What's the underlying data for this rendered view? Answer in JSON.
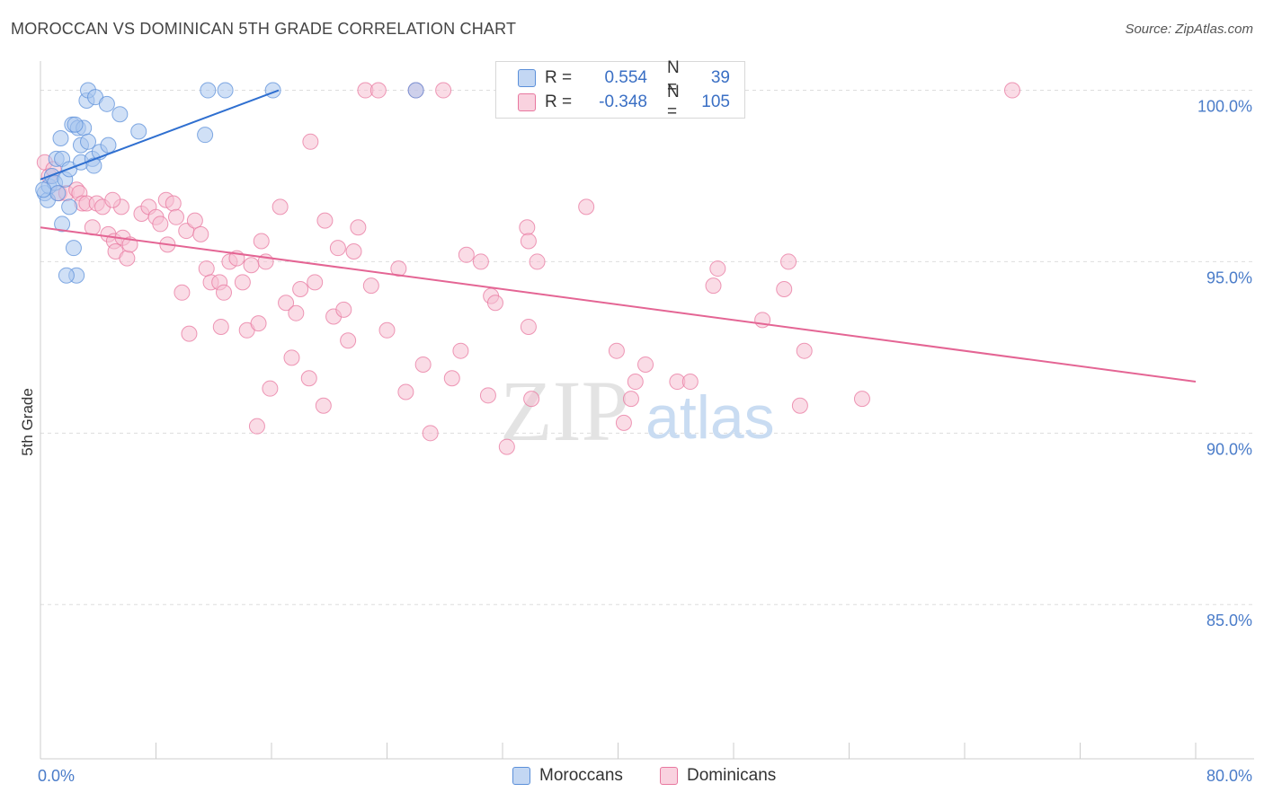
{
  "title": "MOROCCAN VS DOMINICAN 5TH GRADE CORRELATION CHART",
  "source": "Source: ZipAtlas.com",
  "watermark": {
    "zip": "ZIP",
    "atlas": "atlas"
  },
  "legend": {
    "rows": [
      {
        "r_label": "R =",
        "r_value": "0.554",
        "n_label": "N =",
        "n_value": "39"
      },
      {
        "r_label": "R =",
        "r_value": "-0.348",
        "n_label": "N =",
        "n_value": "105"
      }
    ]
  },
  "bottom_legend": {
    "moroccans": "Moroccans",
    "dominicans": "Dominicans"
  },
  "colors": {
    "moroccans": "#5b8fd9",
    "moroccans_fill": "#a9c6ee",
    "dominicans": "#e8779f",
    "dominicans_fill": "#f6bfd2",
    "tick": "#4a7cc9"
  },
  "chart_data": {
    "type": "scatter",
    "title": "MOROCCAN VS DOMINICAN 5TH GRADE CORRELATION CHART",
    "xlabel": "",
    "ylabel": "5th Grade",
    "xlim": [
      0,
      80
    ],
    "ylim": [
      80.5,
      100.8
    ],
    "x_tick_labels": [
      "0.0%",
      "80.0%"
    ],
    "y_ticks": [
      100,
      95,
      90,
      85
    ],
    "y_tick_labels": [
      "100.0%",
      "95.0%",
      "90.0%",
      "85.0%"
    ],
    "grid": true,
    "legend_position": "top-center",
    "series": [
      {
        "name": "Moroccans",
        "r": 0.554,
        "n": 39,
        "trend": [
          [
            0,
            97.4
          ],
          [
            16.5,
            100
          ]
        ],
        "points": [
          [
            0.3,
            97.0
          ],
          [
            0.5,
            96.8
          ],
          [
            0.6,
            97.2
          ],
          [
            0.8,
            97.5
          ],
          [
            1.0,
            97.3
          ],
          [
            1.1,
            98.0
          ],
          [
            1.2,
            97.0
          ],
          [
            1.4,
            98.6
          ],
          [
            1.5,
            96.1
          ],
          [
            1.5,
            98.0
          ],
          [
            1.7,
            97.4
          ],
          [
            2.0,
            96.6
          ],
          [
            2.0,
            97.7
          ],
          [
            2.2,
            99.0
          ],
          [
            2.3,
            95.4
          ],
          [
            2.5,
            94.6
          ],
          [
            2.6,
            98.9
          ],
          [
            2.8,
            98.4
          ],
          [
            2.8,
            97.9
          ],
          [
            3.0,
            98.9
          ],
          [
            3.2,
            99.7
          ],
          [
            3.3,
            98.5
          ],
          [
            3.3,
            100.0
          ],
          [
            3.6,
            98.0
          ],
          [
            3.7,
            97.8
          ],
          [
            3.8,
            99.8
          ],
          [
            4.1,
            98.2
          ],
          [
            4.6,
            99.6
          ],
          [
            4.7,
            98.4
          ],
          [
            5.5,
            99.3
          ],
          [
            6.8,
            98.8
          ],
          [
            11.4,
            98.7
          ],
          [
            11.6,
            100.0
          ],
          [
            12.8,
            100.0
          ],
          [
            16.1,
            100.0
          ],
          [
            26.0,
            100.0
          ],
          [
            0.2,
            97.1
          ],
          [
            1.8,
            94.6
          ],
          [
            2.4,
            99.0
          ]
        ]
      },
      {
        "name": "Dominicans",
        "r": -0.348,
        "n": 105,
        "trend": [
          [
            0,
            96.0
          ],
          [
            80,
            91.5
          ]
        ],
        "points": [
          [
            0.3,
            97.9
          ],
          [
            0.6,
            97.5
          ],
          [
            0.9,
            97.7
          ],
          [
            1.3,
            97.0
          ],
          [
            1.8,
            97.0
          ],
          [
            2.5,
            97.1
          ],
          [
            2.7,
            97.0
          ],
          [
            2.9,
            96.7
          ],
          [
            3.2,
            96.7
          ],
          [
            3.6,
            96.0
          ],
          [
            3.9,
            96.7
          ],
          [
            4.3,
            96.6
          ],
          [
            4.7,
            95.8
          ],
          [
            5.1,
            95.6
          ],
          [
            5.2,
            95.3
          ],
          [
            5.7,
            95.7
          ],
          [
            6.0,
            95.1
          ],
          [
            5.6,
            96.6
          ],
          [
            7.0,
            96.4
          ],
          [
            7.5,
            96.6
          ],
          [
            8.0,
            96.3
          ],
          [
            8.3,
            96.1
          ],
          [
            8.7,
            96.8
          ],
          [
            8.8,
            95.5
          ],
          [
            9.2,
            96.7
          ],
          [
            9.4,
            96.3
          ],
          [
            9.8,
            94.1
          ],
          [
            10.1,
            95.9
          ],
          [
            10.3,
            92.9
          ],
          [
            10.7,
            96.2
          ],
          [
            11.1,
            95.8
          ],
          [
            11.5,
            94.8
          ],
          [
            11.8,
            94.4
          ],
          [
            12.4,
            94.4
          ],
          [
            12.5,
            93.1
          ],
          [
            12.7,
            94.1
          ],
          [
            13.1,
            95.0
          ],
          [
            13.6,
            95.1
          ],
          [
            14.0,
            94.4
          ],
          [
            14.3,
            93.0
          ],
          [
            14.6,
            94.9
          ],
          [
            15.1,
            93.2
          ],
          [
            15.3,
            95.6
          ],
          [
            15.6,
            95.0
          ],
          [
            15.9,
            91.3
          ],
          [
            16.6,
            96.6
          ],
          [
            17.0,
            93.8
          ],
          [
            17.4,
            92.2
          ],
          [
            17.7,
            93.5
          ],
          [
            18.0,
            94.2
          ],
          [
            18.6,
            91.6
          ],
          [
            18.7,
            98.5
          ],
          [
            19.0,
            94.4
          ],
          [
            19.6,
            90.8
          ],
          [
            19.7,
            96.2
          ],
          [
            20.3,
            93.4
          ],
          [
            20.6,
            95.4
          ],
          [
            21.0,
            93.6
          ],
          [
            21.3,
            92.7
          ],
          [
            21.7,
            95.3
          ],
          [
            22.0,
            96.0
          ],
          [
            22.5,
            100.0
          ],
          [
            22.9,
            94.3
          ],
          [
            23.4,
            100.0
          ],
          [
            24.0,
            93.0
          ],
          [
            24.8,
            94.8
          ],
          [
            25.3,
            91.2
          ],
          [
            26.0,
            100.0
          ],
          [
            26.5,
            92.0
          ],
          [
            27.9,
            100.0
          ],
          [
            28.5,
            91.6
          ],
          [
            29.1,
            92.4
          ],
          [
            29.5,
            95.2
          ],
          [
            30.5,
            95.0
          ],
          [
            31.0,
            91.1
          ],
          [
            31.2,
            94.0
          ],
          [
            31.5,
            93.8
          ],
          [
            32.3,
            89.6
          ],
          [
            32.6,
            100.0
          ],
          [
            33.7,
            96.0
          ],
          [
            33.8,
            95.6
          ],
          [
            33.8,
            93.1
          ],
          [
            34.0,
            91.0
          ],
          [
            34.4,
            95.0
          ],
          [
            37.8,
            96.6
          ],
          [
            39.9,
            92.4
          ],
          [
            40.4,
            90.3
          ],
          [
            40.9,
            91.0
          ],
          [
            41.2,
            91.5
          ],
          [
            41.9,
            92.0
          ],
          [
            44.1,
            91.5
          ],
          [
            45.0,
            91.5
          ],
          [
            46.6,
            94.3
          ],
          [
            46.9,
            94.8
          ],
          [
            50.0,
            93.3
          ],
          [
            51.5,
            94.2
          ],
          [
            51.8,
            95.0
          ],
          [
            52.6,
            90.8
          ],
          [
            52.9,
            92.4
          ],
          [
            56.9,
            91.0
          ],
          [
            67.3,
            100.0
          ],
          [
            5.0,
            96.8
          ],
          [
            6.2,
            95.5
          ],
          [
            15.0,
            90.2
          ],
          [
            27.0,
            90.0
          ]
        ]
      }
    ]
  }
}
